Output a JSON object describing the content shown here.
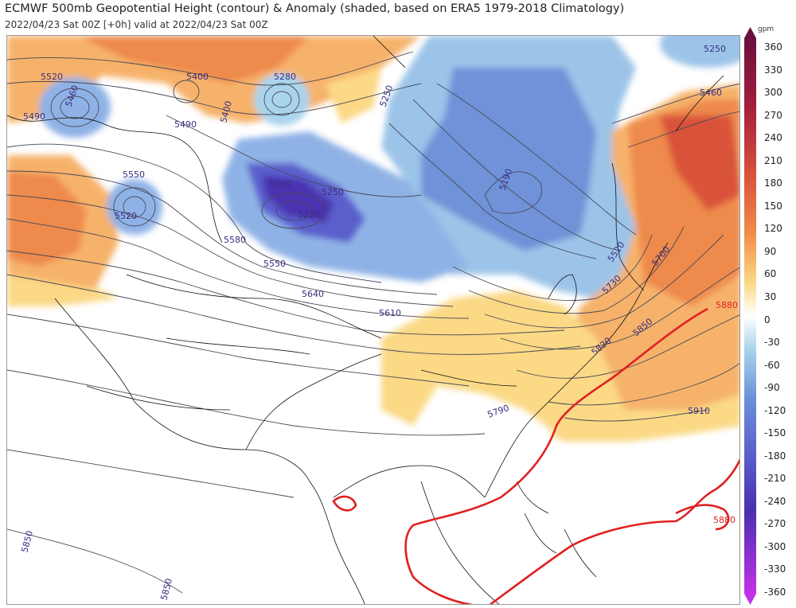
{
  "header": {
    "title": "ECMWF 500mb Geopotential Height (contour) & Anomaly (shaded, based on ERA5 1979-2018 Climatology)",
    "subtitle": "2022/04/23 Sat 00Z [+0h] valid at 2022/04/23 Sat 00Z"
  },
  "colorbar": {
    "unit": "gpm",
    "ticks": [
      "360",
      "330",
      "300",
      "270",
      "240",
      "210",
      "180",
      "150",
      "120",
      "90",
      "60",
      "30",
      "0",
      "-30",
      "-60",
      "-90",
      "-120",
      "-150",
      "-180",
      "-210",
      "-240",
      "-270",
      "-300",
      "-330",
      "-360"
    ],
    "colors": {
      "pos_strong": "#c0392b",
      "pos_mid": "#f08c4a",
      "pos_weak": "#fbd985",
      "neutral": "#ffffff",
      "neg_weak": "#a9d4ec",
      "neg_mid": "#6a8fd8",
      "neg_strong": "#4a2fb0",
      "neg_extreme": "#c231e8",
      "pos_extreme": "#6b0f3f"
    }
  },
  "map": {
    "contour_labels": [
      {
        "text": "5520"
      },
      {
        "text": "5490"
      },
      {
        "text": "5460"
      },
      {
        "text": "5400"
      },
      {
        "text": "5280"
      },
      {
        "text": "5250"
      },
      {
        "text": "5250"
      },
      {
        "text": "5460"
      },
      {
        "text": "5490"
      },
      {
        "text": "5550"
      },
      {
        "text": "5520"
      },
      {
        "text": "5190"
      },
      {
        "text": "5250"
      },
      {
        "text": "5220"
      },
      {
        "text": "5190"
      },
      {
        "text": "5580"
      },
      {
        "text": "5550"
      },
      {
        "text": "5640"
      },
      {
        "text": "5610"
      },
      {
        "text": "5520"
      },
      {
        "text": "5700"
      },
      {
        "text": "5730"
      },
      {
        "text": "5850"
      },
      {
        "text": "5820"
      },
      {
        "text": "5880"
      },
      {
        "text": "5790"
      },
      {
        "text": "5910"
      },
      {
        "text": "5880"
      },
      {
        "text": "5850"
      },
      {
        "text": "5850"
      },
      {
        "text": "5400"
      }
    ],
    "subtropical_high_isoline": "5880",
    "isoline_color": "#e02020"
  }
}
